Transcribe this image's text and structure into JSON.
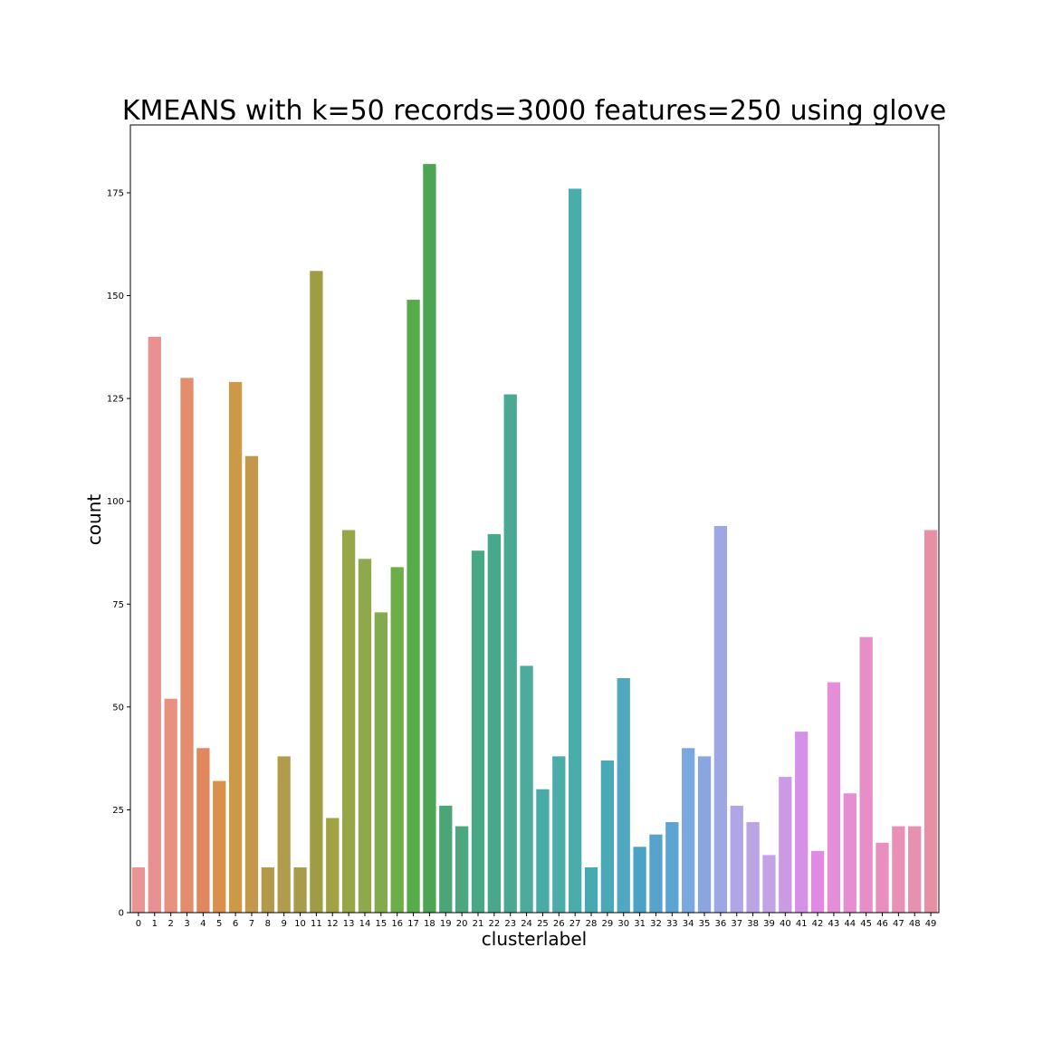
{
  "chart_data": {
    "type": "bar",
    "title": "KMEANS with k=50 records=3000 features=250 using glove",
    "xlabel": "clusterlabel",
    "ylabel": "count",
    "ylim": [
      0,
      191.5
    ],
    "yticks": [
      0,
      25,
      50,
      75,
      100,
      125,
      150,
      175
    ],
    "ytick_labels": [
      "0",
      "25",
      "50",
      "75",
      "100",
      "125",
      "150",
      "175"
    ],
    "grid": false,
    "legend": "none",
    "categories": [
      "0",
      "1",
      "2",
      "3",
      "4",
      "5",
      "6",
      "7",
      "8",
      "9",
      "10",
      "11",
      "12",
      "13",
      "14",
      "15",
      "16",
      "17",
      "18",
      "19",
      "20",
      "21",
      "22",
      "23",
      "24",
      "25",
      "26",
      "27",
      "28",
      "29",
      "30",
      "31",
      "32",
      "33",
      "34",
      "35",
      "36",
      "37",
      "38",
      "39",
      "40",
      "41",
      "42",
      "43",
      "44",
      "45",
      "46",
      "47",
      "48",
      "49"
    ],
    "values": [
      11,
      140,
      52,
      130,
      40,
      32,
      129,
      111,
      11,
      38,
      11,
      156,
      23,
      93,
      86,
      73,
      84,
      149,
      182,
      26,
      21,
      88,
      92,
      126,
      60,
      30,
      38,
      176,
      11,
      37,
      57,
      16,
      19,
      22,
      40,
      38,
      94,
      26,
      22,
      14,
      33,
      44,
      15,
      56,
      29,
      67,
      17,
      21,
      21,
      93
    ],
    "colors": [
      "#e99594",
      "#e99192",
      "#e8917f",
      "#e58c6c",
      "#e1875d",
      "#dc8e4b",
      "#cd9945",
      "#c3984a",
      "#b5994b",
      "#b09c4c",
      "#a79c4b",
      "#9e9c44",
      "#a0a243",
      "#97a646",
      "#8fa84c",
      "#83ab4d",
      "#6cae48",
      "#57ac4a",
      "#4ba553",
      "#4aa676",
      "#4ba87e",
      "#48a886",
      "#48a88b",
      "#4ba993",
      "#4bab9d",
      "#48aba5",
      "#4baca9",
      "#4bacac",
      "#48aab1",
      "#4aa9b7",
      "#50a8c0",
      "#4aa3c7",
      "#57a3cb",
      "#5ca4d3",
      "#7aa9df",
      "#89a6e1",
      "#9ca7e4",
      "#b0a6e6",
      "#bba4e3",
      "#c4a2e6",
      "#cc99e4",
      "#d591e6",
      "#e289e3",
      "#e48ed8",
      "#e68ed2",
      "#e78ec9",
      "#e88fbf",
      "#e890b6",
      "#e890b0",
      "#e88fa6"
    ]
  }
}
